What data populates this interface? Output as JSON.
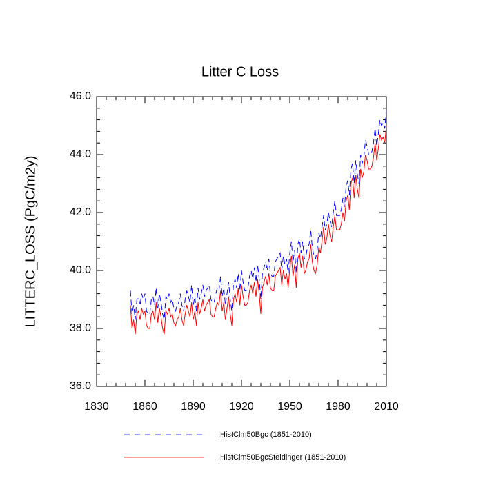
{
  "chart_data": {
    "type": "line",
    "title": "Litter C Loss",
    "ylabel": "LITTERC_LOSS  (PgC/m2y)",
    "x": [
      1851,
      1852,
      1853,
      1854,
      1855,
      1856,
      1857,
      1858,
      1859,
      1860,
      1861,
      1862,
      1863,
      1864,
      1865,
      1866,
      1867,
      1868,
      1869,
      1870,
      1871,
      1872,
      1873,
      1874,
      1875,
      1876,
      1877,
      1878,
      1879,
      1880,
      1881,
      1882,
      1883,
      1884,
      1885,
      1886,
      1887,
      1888,
      1889,
      1890,
      1891,
      1892,
      1893,
      1894,
      1895,
      1896,
      1897,
      1898,
      1899,
      1900,
      1901,
      1902,
      1903,
      1904,
      1905,
      1906,
      1907,
      1908,
      1909,
      1910,
      1911,
      1912,
      1913,
      1914,
      1915,
      1916,
      1917,
      1918,
      1919,
      1920,
      1921,
      1922,
      1923,
      1924,
      1925,
      1926,
      1927,
      1928,
      1929,
      1930,
      1931,
      1932,
      1933,
      1934,
      1935,
      1936,
      1937,
      1938,
      1939,
      1940,
      1941,
      1942,
      1943,
      1944,
      1945,
      1946,
      1947,
      1948,
      1949,
      1950,
      1951,
      1952,
      1953,
      1954,
      1955,
      1956,
      1957,
      1958,
      1959,
      1960,
      1961,
      1962,
      1963,
      1964,
      1965,
      1966,
      1967,
      1968,
      1969,
      1970,
      1971,
      1972,
      1973,
      1974,
      1975,
      1976,
      1977,
      1978,
      1979,
      1980,
      1981,
      1982,
      1983,
      1984,
      1985,
      1986,
      1987,
      1988,
      1989,
      1990,
      1991,
      1992,
      1993,
      1994,
      1995,
      1996,
      1997,
      1998,
      1999,
      2000,
      2001,
      2002,
      2003,
      2004,
      2005,
      2006,
      2007,
      2008,
      2009,
      2010
    ],
    "series": [
      {
        "name": "IHistClm50Bgc (1851-2010)",
        "color": "#0000ff",
        "dash": true,
        "values": [
          39.3,
          38.5,
          38.8,
          38.3,
          39.0,
          39.1,
          38.8,
          39.2,
          39.0,
          39.2,
          38.6,
          38.5,
          38.5,
          39.0,
          39.1,
          38.8,
          39.4,
          38.7,
          39.2,
          38.9,
          38.5,
          38.3,
          39.1,
          39.0,
          39.2,
          38.9,
          39.0,
          38.7,
          38.6,
          38.8,
          38.9,
          39.2,
          38.8,
          38.6,
          39.0,
          39.3,
          39.1,
          38.9,
          39.5,
          38.8,
          39.1,
          38.6,
          39.4,
          39.0,
          39.2,
          39.5,
          39.1,
          39.3,
          39.4,
          39.5,
          39.0,
          38.9,
          38.9,
          39.2,
          39.4,
          39.3,
          39.8,
          39.1,
          39.4,
          38.8,
          39.2,
          39.6,
          39.0,
          38.6,
          39.5,
          39.7,
          39.4,
          39.9,
          39.3,
          40.0,
          39.6,
          39.3,
          39.3,
          39.4,
          39.8,
          40.0,
          39.7,
          40.1,
          39.6,
          40.2,
          39.7,
          39.0,
          39.9,
          40.1,
          40.3,
          40.0,
          40.4,
          39.9,
          39.8,
          39.8,
          40.3,
          40.4,
          40.5,
          40.6,
          40.0,
          40.5,
          40.2,
          40.4,
          39.9,
          40.6,
          41.0,
          40.3,
          40.7,
          39.9,
          40.9,
          41.1,
          40.6,
          41.0,
          40.4,
          40.5,
          40.8,
          40.9,
          41.4,
          40.8,
          40.5,
          40.4,
          40.7,
          41.3,
          41.1,
          41.5,
          41.9,
          41.4,
          41.6,
          42.0,
          41.7,
          41.5,
          42.0,
          42.4,
          41.9,
          41.9,
          41.9,
          42.1,
          42.5,
          42.2,
          42.9,
          43.1,
          42.6,
          43.5,
          43.7,
          43.0,
          43.8,
          43.3,
          43.0,
          44.0,
          43.7,
          43.9,
          44.5,
          44.3,
          44.0,
          44.0,
          44.1,
          44.4,
          44.9,
          44.3,
          44.7,
          45.2,
          45.0,
          45.1,
          44.9,
          45.5
        ]
      },
      {
        "name": "IHistClm50BgcSteidinger (1851-2010)",
        "color": "#ff0000",
        "dash": false,
        "values": [
          38.8,
          38.0,
          38.3,
          37.8,
          38.5,
          38.6,
          38.3,
          38.7,
          38.5,
          38.6,
          38.1,
          38.0,
          38.0,
          38.5,
          38.6,
          38.3,
          38.9,
          38.2,
          38.7,
          38.4,
          38.0,
          37.8,
          38.6,
          38.5,
          38.7,
          38.4,
          38.5,
          38.2,
          38.1,
          38.3,
          38.4,
          38.7,
          38.3,
          38.1,
          38.5,
          38.8,
          38.6,
          38.4,
          38.9,
          38.3,
          38.6,
          38.1,
          38.9,
          38.5,
          38.7,
          39.0,
          38.6,
          38.8,
          38.9,
          39.0,
          38.5,
          38.4,
          38.4,
          38.7,
          38.9,
          38.8,
          39.3,
          38.6,
          38.9,
          38.3,
          38.7,
          39.1,
          38.5,
          38.1,
          39.0,
          39.2,
          38.9,
          39.4,
          38.8,
          39.5,
          39.1,
          38.8,
          38.8,
          38.9,
          39.3,
          39.5,
          39.2,
          39.6,
          39.1,
          39.7,
          39.2,
          38.5,
          39.4,
          39.6,
          39.8,
          39.5,
          39.9,
          39.4,
          39.3,
          39.3,
          39.8,
          39.9,
          40.0,
          40.1,
          39.5,
          40.0,
          39.7,
          39.9,
          39.4,
          40.1,
          40.5,
          39.8,
          40.2,
          39.4,
          40.4,
          40.6,
          40.1,
          40.5,
          39.9,
          40.0,
          40.3,
          40.4,
          40.9,
          40.3,
          40.0,
          39.9,
          40.2,
          40.8,
          40.6,
          41.0,
          41.5,
          40.9,
          41.1,
          41.6,
          41.2,
          41.0,
          41.5,
          41.9,
          41.4,
          41.4,
          41.4,
          41.6,
          42.0,
          41.7,
          42.4,
          42.6,
          42.1,
          43.0,
          43.2,
          42.5,
          43.3,
          42.8,
          42.5,
          43.5,
          43.2,
          43.4,
          44.0,
          43.8,
          43.5,
          43.5,
          43.6,
          43.9,
          44.4,
          43.8,
          44.2,
          44.7,
          44.5,
          44.6,
          44.4,
          45.0
        ]
      }
    ],
    "xlim": [
      1830,
      2010
    ],
    "xticks": [
      1830,
      1860,
      1890,
      1920,
      1950,
      1980,
      2010
    ],
    "xminorticks": [
      1836,
      1842,
      1848,
      1854,
      1866,
      1872,
      1878,
      1884,
      1896,
      1902,
      1908,
      1914,
      1926,
      1932,
      1938,
      1944,
      1956,
      1962,
      1968,
      1974,
      1986,
      1992,
      1998,
      2004
    ],
    "ylim": [
      36,
      46
    ],
    "yticks": [
      {
        "value": 36,
        "label": "36.0"
      },
      {
        "value": 38,
        "label": "38.0"
      },
      {
        "value": 40,
        "label": "40.0"
      },
      {
        "value": 42,
        "label": "42.0"
      },
      {
        "value": 44,
        "label": "44.0"
      },
      {
        "value": 46,
        "label": "46.0"
      }
    ],
    "yminorticks": [
      36.4,
      36.8,
      37.2,
      37.6,
      38.4,
      38.8,
      39.2,
      39.6,
      40.4,
      40.8,
      41.2,
      41.6,
      42.4,
      42.8,
      43.2,
      43.6,
      44.4,
      44.8,
      45.2,
      45.6
    ],
    "grid": false
  }
}
